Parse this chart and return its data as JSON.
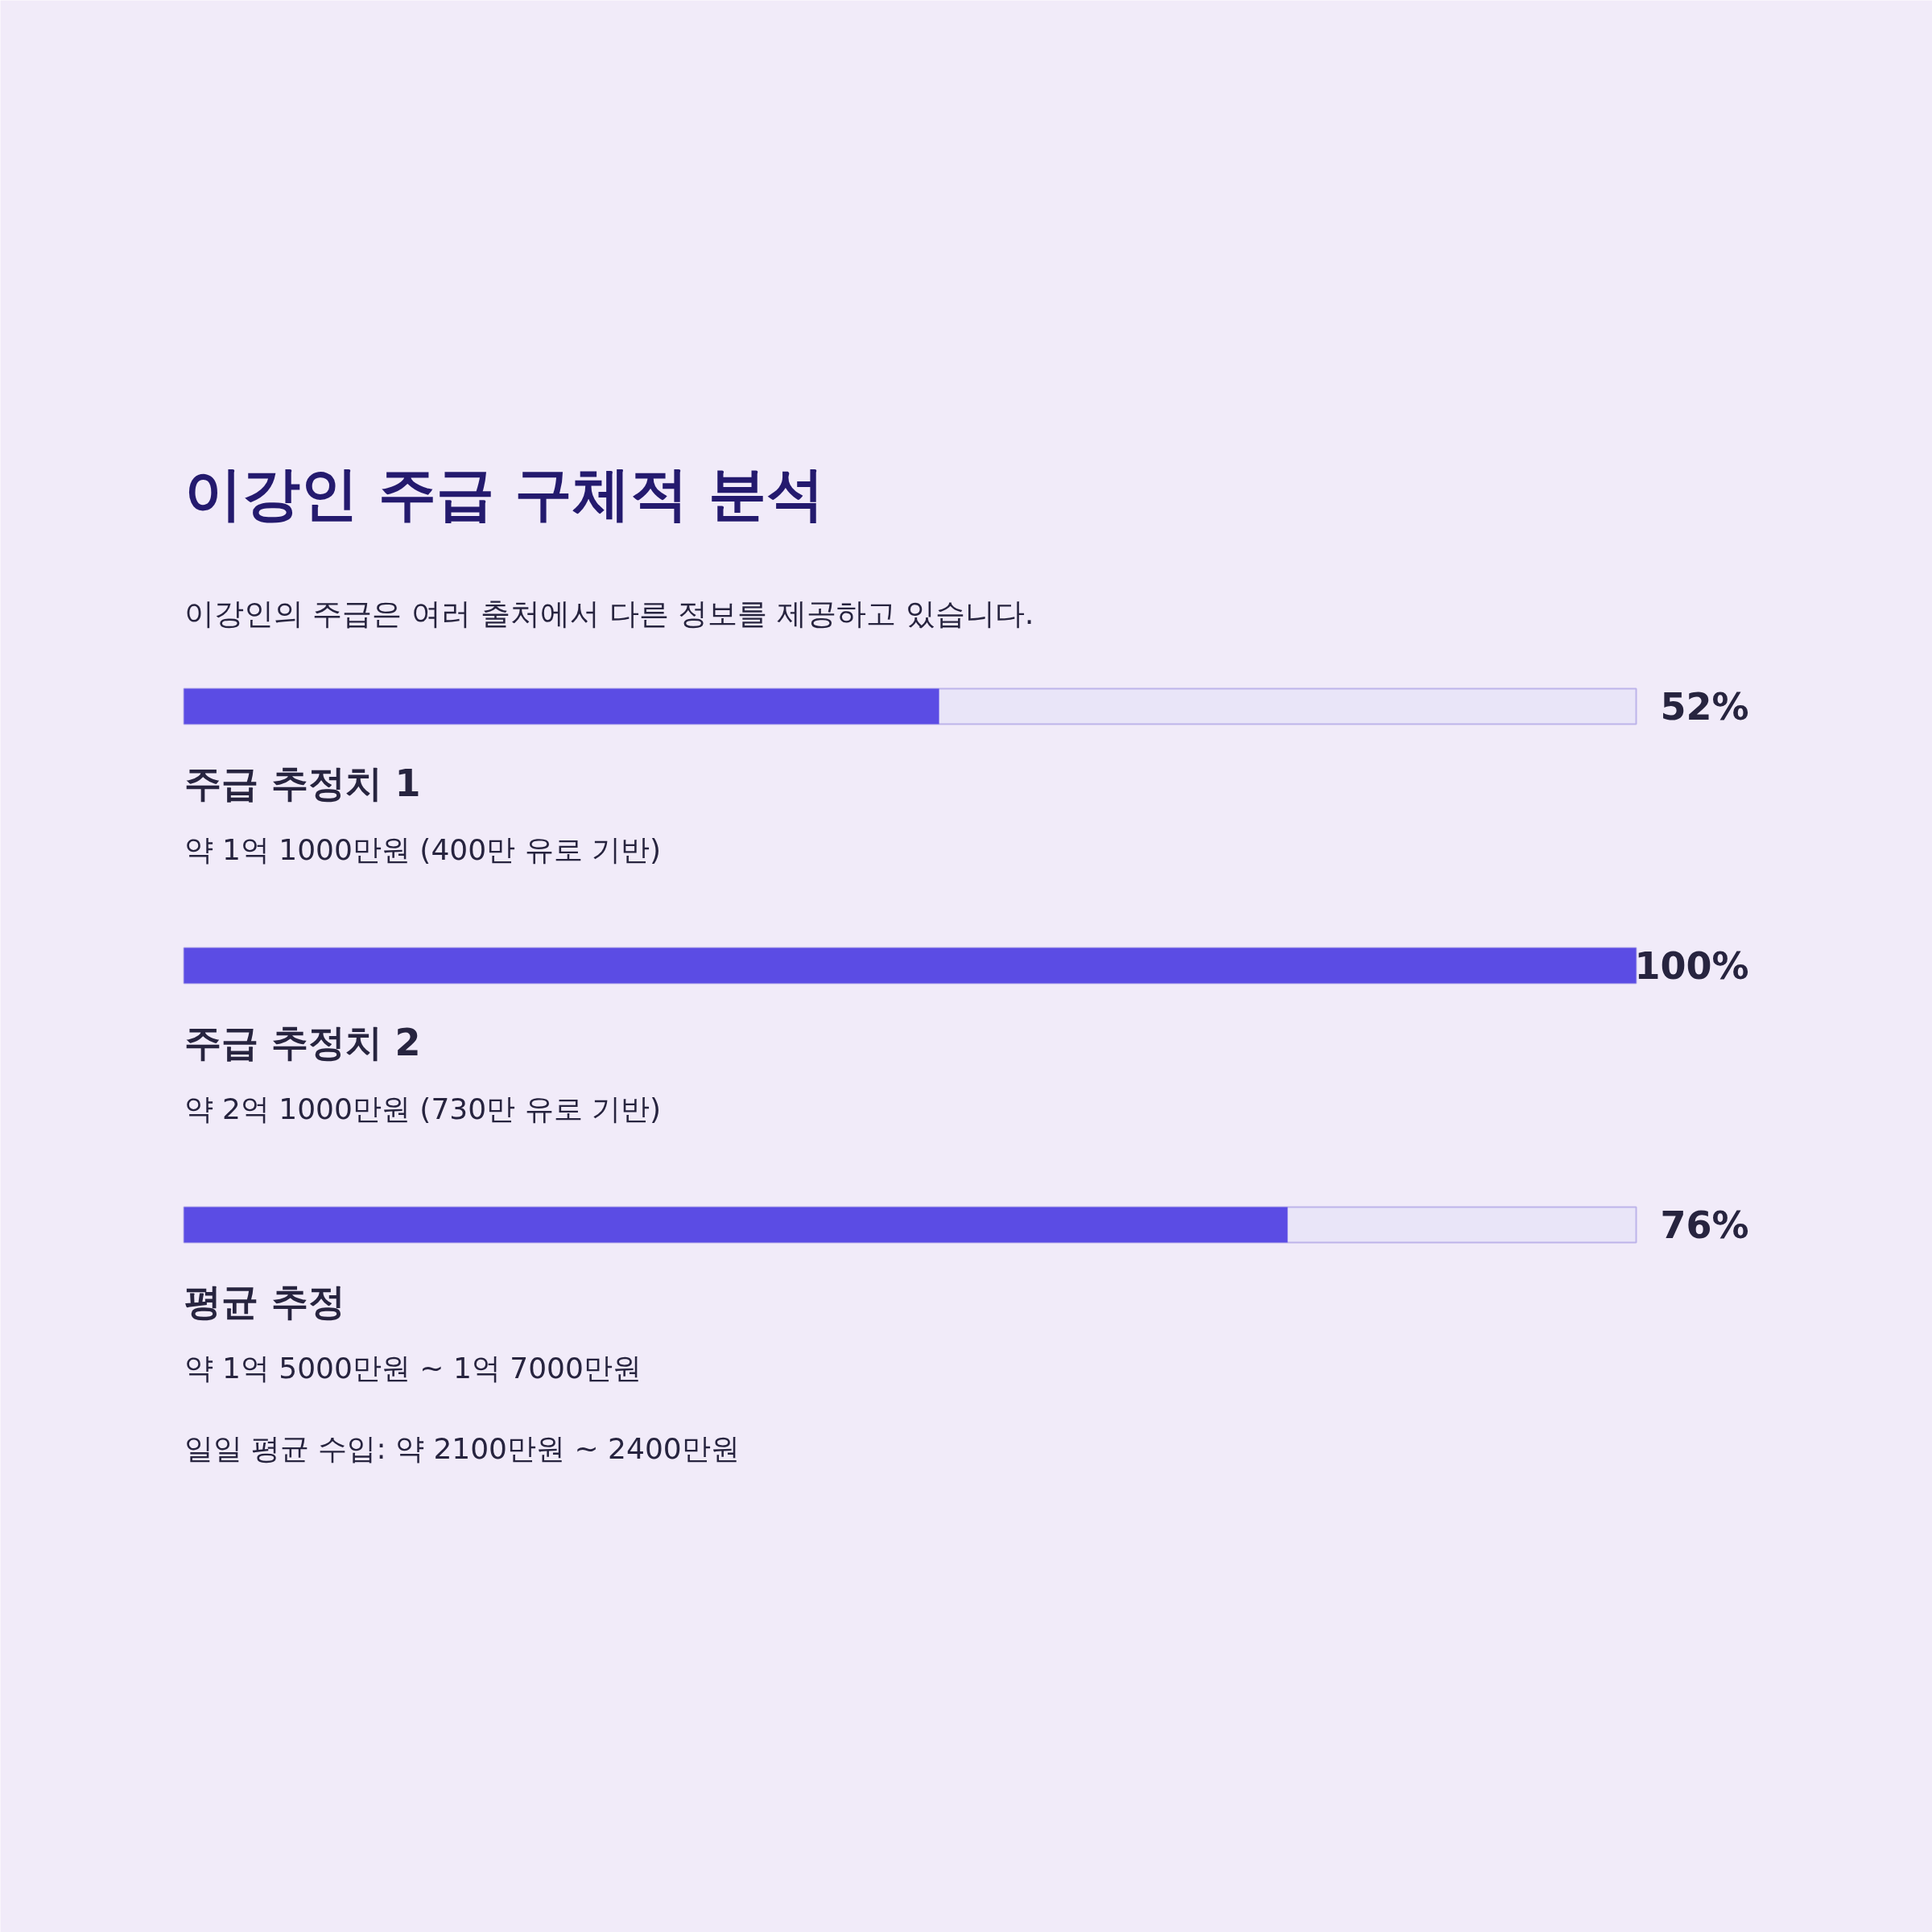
{
  "chart_data": {
    "type": "bar",
    "orientation": "horizontal",
    "title": "이강인 주급 구체적 분석",
    "subtitle": "이강인의 주급은 여러 출처에서 다른 정보를 제공하고 있습니다.",
    "categories": [
      "주급 추정치 1",
      "주급 추정치 2",
      "평균 추정"
    ],
    "values": [
      52,
      100,
      76
    ],
    "color": "#5b4ce4",
    "xlim": [
      0,
      100
    ],
    "tick_labels": false,
    "grid": false,
    "value_labels": [
      "52%",
      "100%",
      "76%"
    ],
    "annotations": [
      "약 1억 1000만원 (400만 유로 기반)",
      "약 2억 1000만원 (730만 유로 기반)",
      "약 1억 5000만원 ~ 1억 7000만원",
      "일일 평균 수입: 약 2100만원 ~ 2400만원"
    ]
  }
}
